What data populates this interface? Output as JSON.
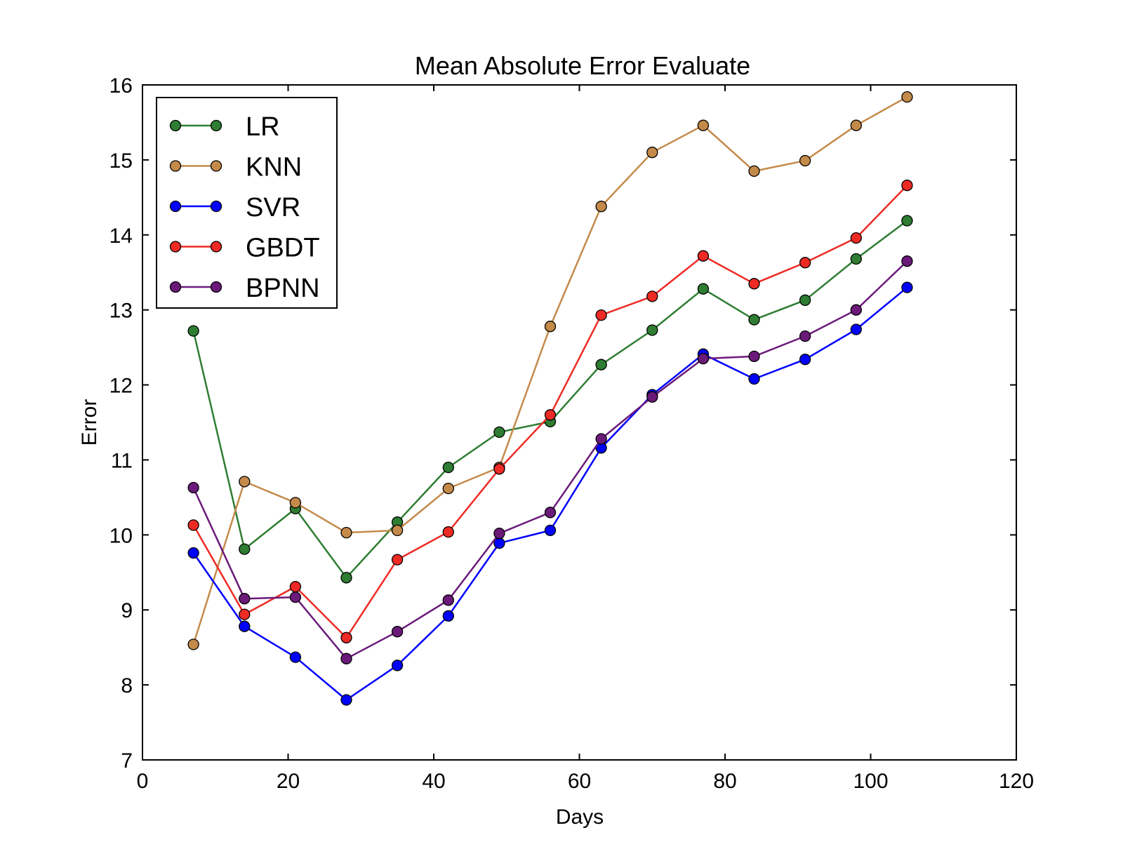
{
  "chart_data": {
    "type": "line",
    "title": "Mean Absolute Error Evaluate",
    "xlabel": "Days",
    "ylabel": "Error",
    "xlim": [
      0,
      120
    ],
    "ylim": [
      7,
      16
    ],
    "xticks": [
      0,
      20,
      40,
      60,
      80,
      100,
      120
    ],
    "yticks": [
      7,
      8,
      9,
      10,
      11,
      12,
      13,
      14,
      15,
      16
    ],
    "grid": false,
    "legend_position": "top-left",
    "x": [
      7,
      14,
      21,
      28,
      35,
      42,
      49,
      56,
      63,
      70,
      77,
      84,
      91,
      98,
      105
    ],
    "series": [
      {
        "name": "LR",
        "color": "#2e7d32",
        "values": [
          12.72,
          9.81,
          10.35,
          9.43,
          10.17,
          10.9,
          11.37,
          11.51,
          12.27,
          12.73,
          13.28,
          12.87,
          13.13,
          13.68,
          14.19
        ]
      },
      {
        "name": "KNN",
        "color": "#c48a4a",
        "values": [
          8.54,
          10.71,
          10.43,
          10.03,
          10.06,
          10.62,
          10.9,
          12.78,
          14.38,
          15.1,
          15.46,
          14.85,
          14.99,
          15.46,
          15.84
        ]
      },
      {
        "name": "SVR",
        "color": "#0000ff",
        "values": [
          9.76,
          8.78,
          8.37,
          7.8,
          8.26,
          8.92,
          9.89,
          10.06,
          11.16,
          11.87,
          12.41,
          12.08,
          12.34,
          12.74,
          13.3
        ]
      },
      {
        "name": "GBDT",
        "color": "#ee2a24",
        "values": [
          10.13,
          8.94,
          9.31,
          8.63,
          9.67,
          10.04,
          10.88,
          11.6,
          12.93,
          13.18,
          13.72,
          13.35,
          13.63,
          13.96,
          14.66
        ]
      },
      {
        "name": "BPNN",
        "color": "#6b1a7a",
        "values": [
          10.63,
          9.15,
          9.17,
          8.35,
          8.71,
          9.13,
          10.02,
          10.3,
          11.28,
          11.84,
          12.35,
          12.38,
          12.65,
          13.0,
          13.65
        ]
      }
    ]
  }
}
